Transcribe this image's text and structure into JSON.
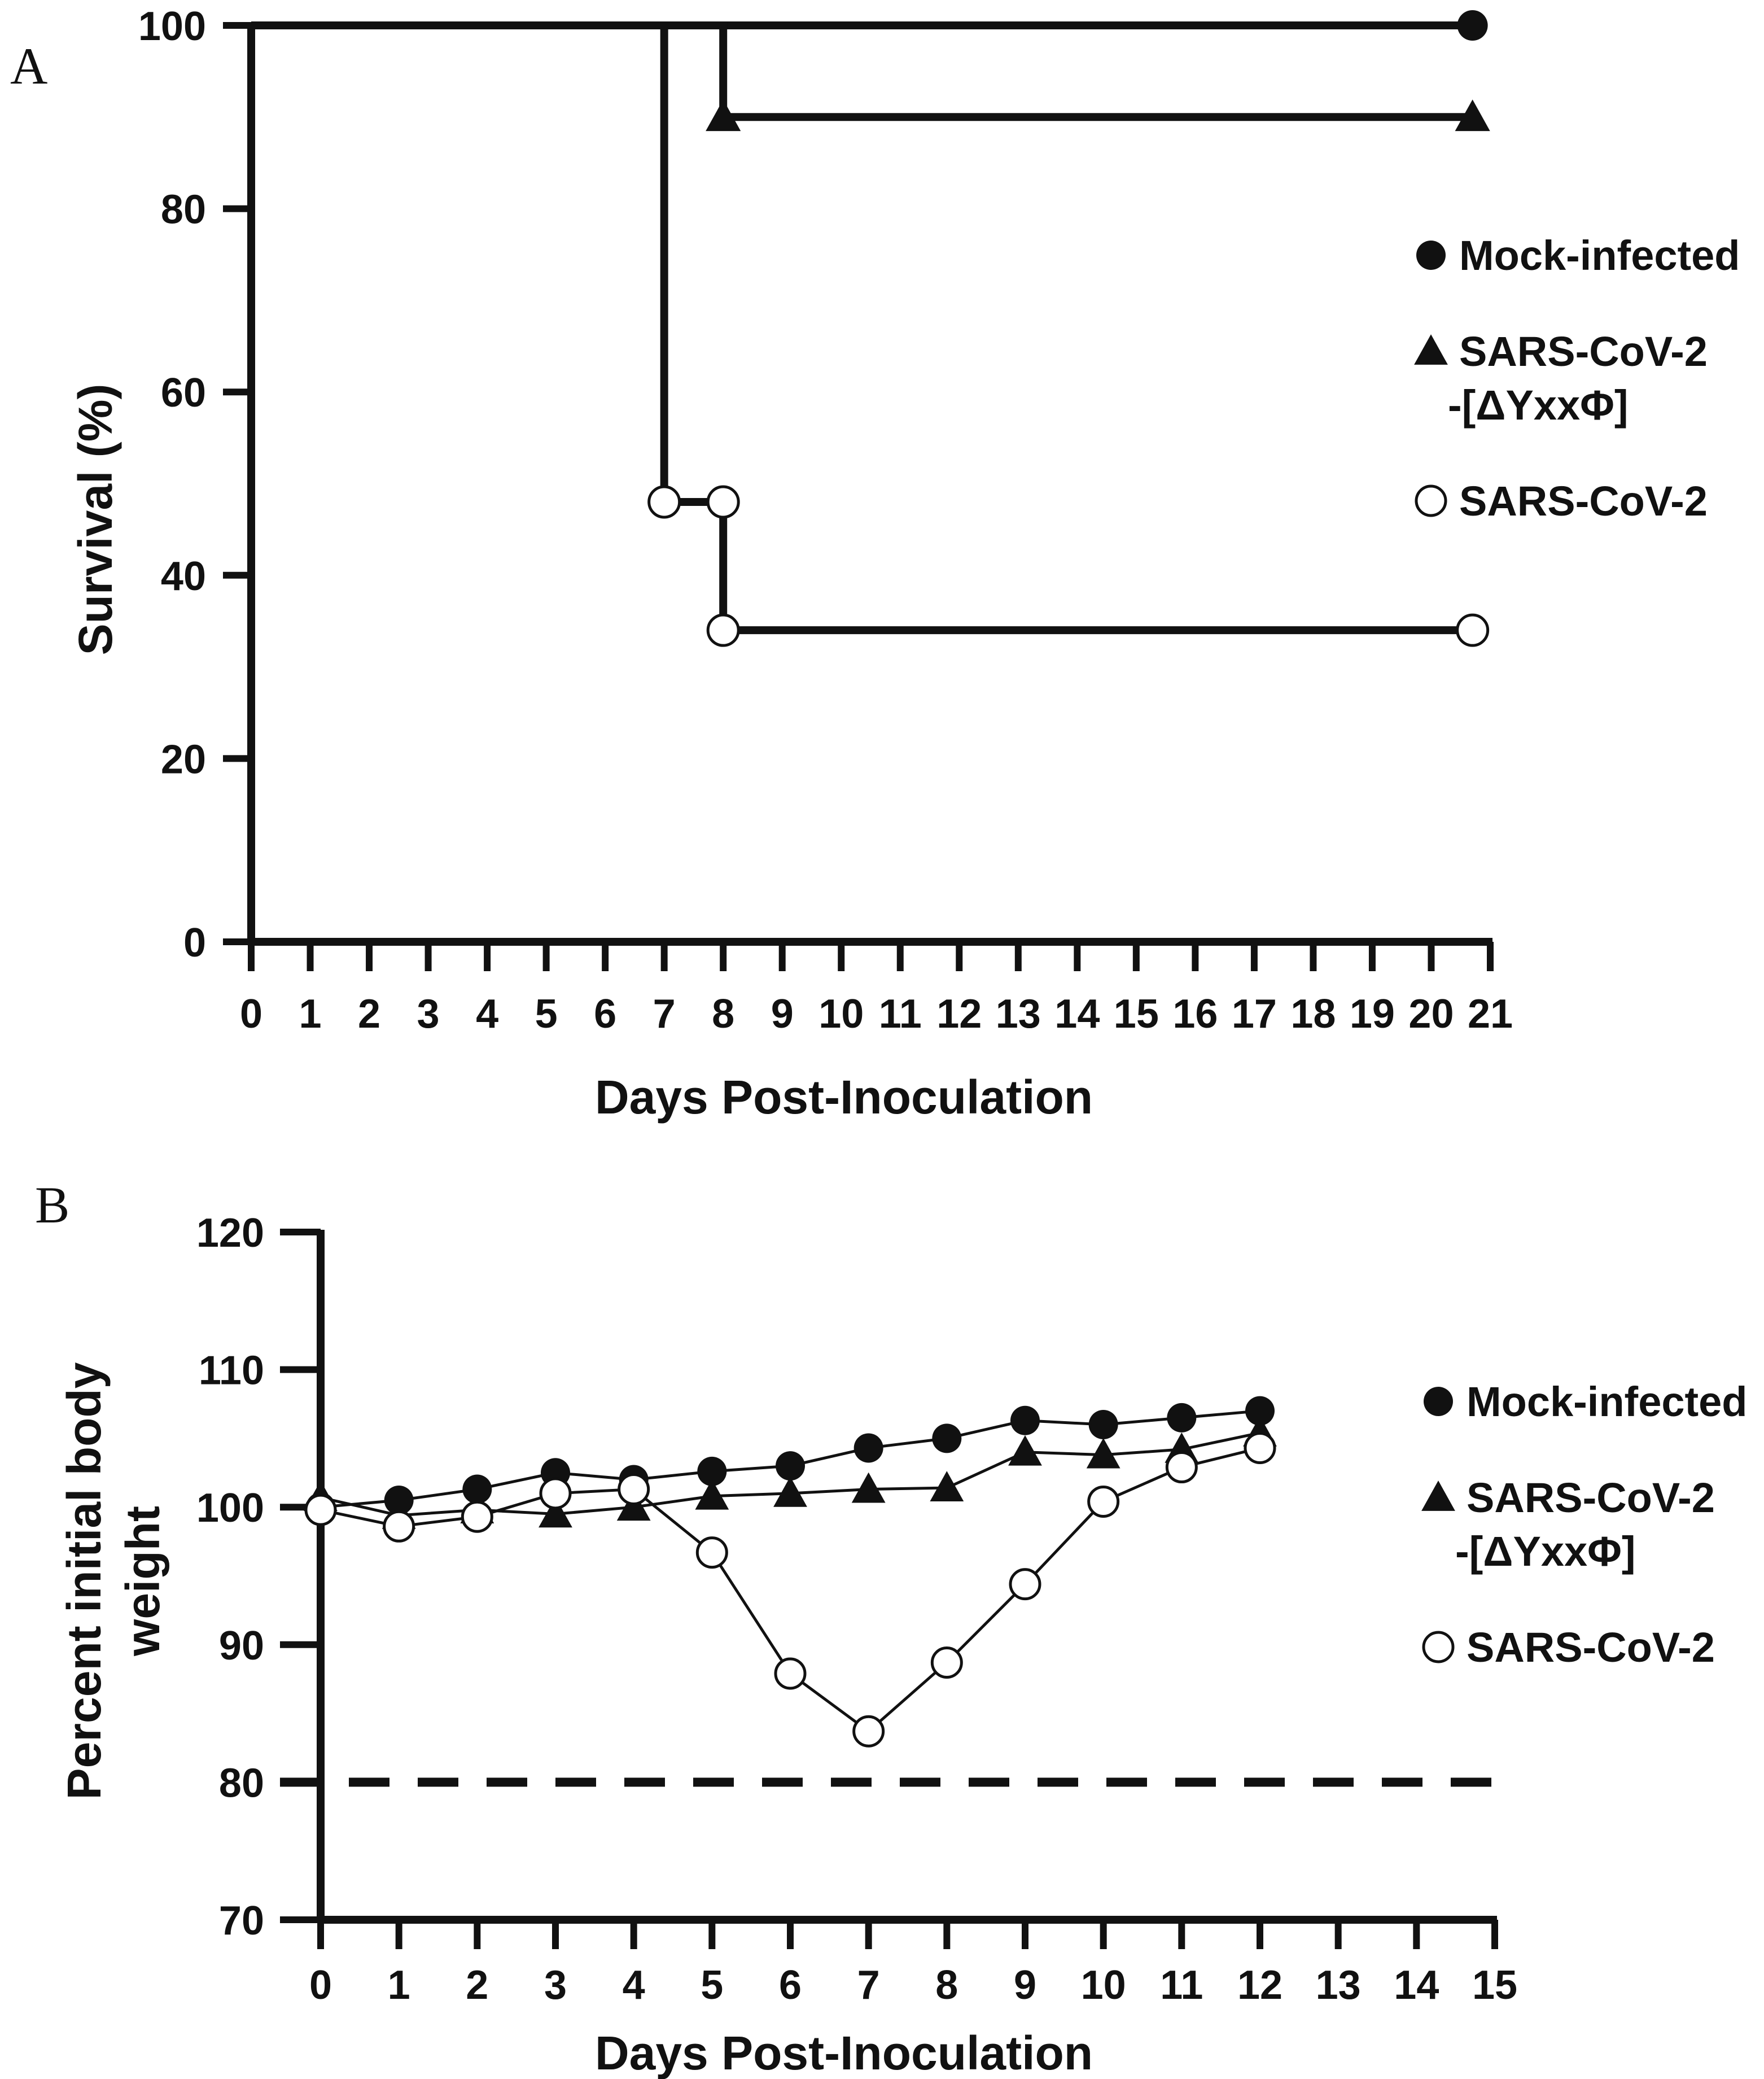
{
  "panels": [
    "A",
    "B"
  ],
  "colors": {
    "ink": "#111111",
    "open_fill": "#ffffff"
  },
  "chart_data": [
    {
      "type": "line",
      "subtype": "kaplan-meier",
      "panel_label": "A",
      "title": "",
      "xlabel": "Days Post-Inoculation",
      "ylabel": "Survival (%)",
      "xlim": [
        0,
        21
      ],
      "ylim": [
        0,
        100
      ],
      "x_ticks": [
        0,
        1,
        2,
        3,
        4,
        5,
        6,
        7,
        8,
        9,
        10,
        11,
        12,
        13,
        14,
        15,
        16,
        17,
        18,
        19,
        20,
        21
      ],
      "y_ticks": [
        0,
        20,
        40,
        60,
        80,
        100
      ],
      "legend_position": "right",
      "series": [
        {
          "name": "Mock-infected",
          "marker": "filled-circle",
          "step_points": [
            [
              0,
              100
            ],
            [
              20.7,
              100
            ]
          ],
          "markers": [
            [
              20.7,
              100
            ]
          ]
        },
        {
          "name": "SARS-CoV-2 -[ΔYxxΦ]",
          "legend_lines": [
            "SARS-CoV-2",
            "-[ΔYxxΦ]"
          ],
          "marker": "filled-triangle",
          "step_points": [
            [
              0,
              100
            ],
            [
              8,
              100
            ],
            [
              8,
              90
            ],
            [
              20.7,
              90
            ]
          ],
          "markers": [
            [
              8,
              90
            ],
            [
              20.7,
              90
            ]
          ]
        },
        {
          "name": "SARS-CoV-2",
          "marker": "open-circle",
          "step_points": [
            [
              0,
              100
            ],
            [
              7,
              100
            ],
            [
              7,
              48
            ],
            [
              8,
              48
            ],
            [
              8,
              34
            ],
            [
              20.7,
              34
            ]
          ],
          "markers": [
            [
              7,
              48
            ],
            [
              8,
              48
            ],
            [
              8,
              34
            ],
            [
              20.7,
              34
            ]
          ]
        }
      ]
    },
    {
      "type": "line",
      "panel_label": "B",
      "title": "",
      "xlabel": "Days Post-Inoculation",
      "ylabel_lines": [
        "Percent initial body",
        "weight"
      ],
      "ylabel": "Percent initial body weight",
      "xlim": [
        0,
        15
      ],
      "ylim": [
        70,
        120
      ],
      "x_ticks": [
        0,
        1,
        2,
        3,
        4,
        5,
        6,
        7,
        8,
        9,
        10,
        11,
        12,
        13,
        14,
        15
      ],
      "y_ticks": [
        70,
        80,
        90,
        100,
        110,
        120
      ],
      "reference_line": {
        "y": 80,
        "style": "dashed"
      },
      "legend_position": "right",
      "series": [
        {
          "name": "Mock-infected",
          "marker": "filled-circle",
          "x": [
            0,
            1,
            2,
            3,
            4,
            5,
            6,
            7,
            8,
            9,
            10,
            11,
            12
          ],
          "y": [
            100,
            100.5,
            101.3,
            102.5,
            102,
            102.6,
            103,
            104.3,
            105,
            106.3,
            106,
            106.5,
            107
          ]
        },
        {
          "name": "SARS-CoV-2 -[ΔYxxΦ]",
          "legend_lines": [
            "SARS-CoV-2",
            "-[ΔYxxΦ]"
          ],
          "marker": "filled-triangle",
          "x": [
            0,
            1,
            2,
            3,
            4,
            5,
            6,
            7,
            8,
            9,
            10,
            11,
            12
          ],
          "y": [
            100.7,
            99.4,
            99.8,
            99.5,
            100,
            100.8,
            101,
            101.3,
            101.4,
            104,
            103.8,
            104.2,
            105.4
          ]
        },
        {
          "name": "SARS-CoV-2",
          "marker": "open-circle",
          "x": [
            0,
            1,
            2,
            3,
            4,
            5,
            6,
            7,
            8,
            9,
            10,
            11,
            12
          ],
          "y": [
            99.8,
            98.6,
            99.3,
            101,
            101.3,
            96.7,
            87.9,
            83.7,
            88.7,
            94.4,
            100.4,
            102.9,
            104.3
          ]
        }
      ]
    }
  ]
}
